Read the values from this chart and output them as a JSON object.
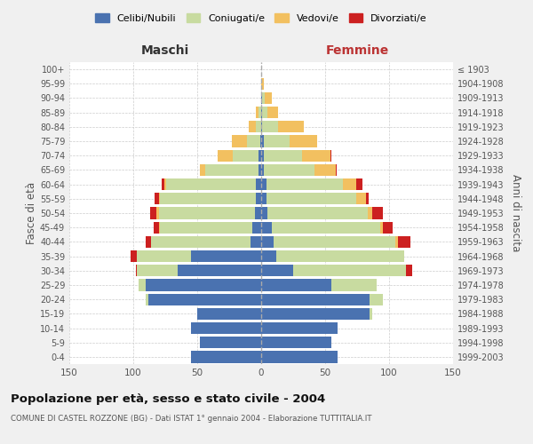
{
  "age_groups": [
    "0-4",
    "5-9",
    "10-14",
    "15-19",
    "20-24",
    "25-29",
    "30-34",
    "35-39",
    "40-44",
    "45-49",
    "50-54",
    "55-59",
    "60-64",
    "65-69",
    "70-74",
    "75-79",
    "80-84",
    "85-89",
    "90-94",
    "95-99",
    "100+"
  ],
  "birth_years": [
    "1999-2003",
    "1994-1998",
    "1989-1993",
    "1984-1988",
    "1979-1983",
    "1974-1978",
    "1969-1973",
    "1964-1968",
    "1959-1963",
    "1954-1958",
    "1949-1953",
    "1944-1948",
    "1939-1943",
    "1934-1938",
    "1929-1933",
    "1924-1928",
    "1919-1923",
    "1914-1918",
    "1909-1913",
    "1904-1908",
    "≤ 1903"
  ],
  "colors": {
    "celibi": "#4a72b0",
    "coniugati": "#c8dba0",
    "vedovi": "#f2c060",
    "divorziati": "#cc2020"
  },
  "males": {
    "celibi": [
      55,
      48,
      55,
      50,
      88,
      90,
      65,
      55,
      8,
      7,
      5,
      4,
      4,
      2,
      2,
      1,
      0,
      0,
      0,
      0,
      0
    ],
    "coniugati": [
      0,
      0,
      0,
      0,
      2,
      6,
      32,
      42,
      78,
      72,
      75,
      75,
      70,
      42,
      20,
      10,
      4,
      2,
      0,
      0,
      0
    ],
    "vedovi": [
      0,
      0,
      0,
      0,
      0,
      0,
      0,
      0,
      0,
      1,
      2,
      1,
      2,
      4,
      12,
      12,
      6,
      2,
      0,
      0,
      0
    ],
    "divorziati": [
      0,
      0,
      0,
      0,
      0,
      0,
      1,
      5,
      4,
      4,
      5,
      3,
      2,
      0,
      0,
      0,
      0,
      0,
      0,
      0,
      0
    ]
  },
  "females": {
    "celibi": [
      60,
      55,
      60,
      85,
      85,
      55,
      25,
      12,
      10,
      8,
      5,
      4,
      4,
      2,
      2,
      2,
      1,
      1,
      1,
      0,
      0
    ],
    "coniugati": [
      0,
      0,
      0,
      2,
      10,
      35,
      88,
      100,
      95,
      85,
      78,
      70,
      60,
      40,
      30,
      20,
      12,
      4,
      2,
      0,
      0
    ],
    "vedovi": [
      0,
      0,
      0,
      0,
      0,
      0,
      0,
      0,
      2,
      2,
      4,
      8,
      10,
      16,
      22,
      22,
      20,
      8,
      5,
      2,
      0
    ],
    "divorziati": [
      0,
      0,
      0,
      0,
      0,
      0,
      5,
      0,
      10,
      8,
      8,
      2,
      5,
      1,
      1,
      0,
      0,
      0,
      0,
      0,
      0
    ]
  },
  "title": "Popolazione per età, sesso e stato civile - 2004",
  "subtitle": "COMUNE DI CASTEL ROZZONE (BG) - Dati ISTAT 1° gennaio 2004 - Elaborazione TUTTITALIA.IT",
  "xlabel_left": "Maschi",
  "xlabel_right": "Femmine",
  "ylabel_left": "Fasce di età",
  "ylabel_right": "Anni di nascita",
  "xlim": 150,
  "legend_labels": [
    "Celibi/Nubili",
    "Coniugati/e",
    "Vedovi/e",
    "Divorziati/e"
  ],
  "bg_color": "#f0f0f0",
  "plot_bg_color": "#ffffff"
}
